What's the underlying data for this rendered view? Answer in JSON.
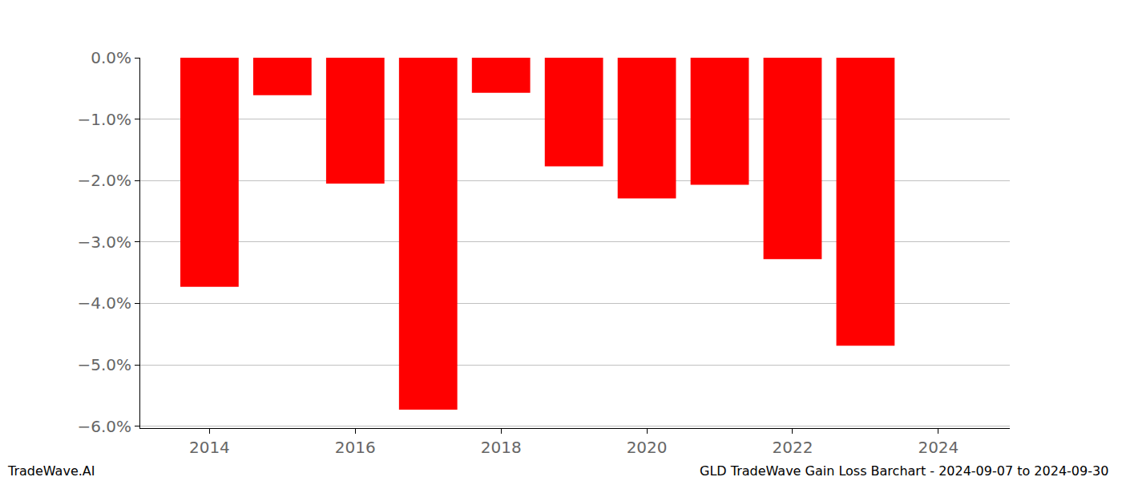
{
  "chart_data": {
    "type": "bar",
    "title": "GLD TradeWave Gain Loss Barchart - 2024-09-07 to 2024-09-30",
    "annotations": [
      "TradeWave.AI"
    ],
    "x": [
      2014,
      2015,
      2016,
      2017,
      2018,
      2019,
      2020,
      2021,
      2022,
      2023
    ],
    "values": [
      -3.73,
      -0.61,
      -2.05,
      -5.73,
      -0.57,
      -1.77,
      -2.29,
      -2.07,
      -3.28,
      -4.69
    ],
    "color": "#ff0000",
    "xlim": [
      2013.05,
      2024.98
    ],
    "xticks": [
      2014,
      2016,
      2018,
      2020,
      2022,
      2024
    ],
    "ylim": [
      -6.03,
      0
    ],
    "yticks": [
      {
        "value": 0,
        "label": "0.0%"
      },
      {
        "value": -1,
        "label": "−1.0%"
      },
      {
        "value": -2,
        "label": "−2.0%"
      },
      {
        "value": -3,
        "label": "−3.0%"
      },
      {
        "value": -4,
        "label": "−4.0%"
      },
      {
        "value": -5,
        "label": "−5.0%"
      },
      {
        "value": -6,
        "label": "−6.0%"
      }
    ],
    "grid": true
  }
}
